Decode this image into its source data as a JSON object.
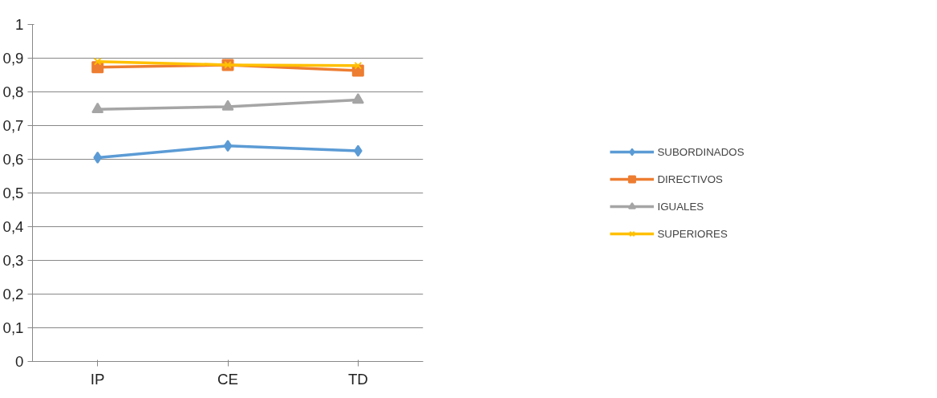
{
  "chart_data": {
    "type": "line",
    "categories": [
      "IP",
      "CE",
      "TD"
    ],
    "series": [
      {
        "name": "SUBORDINADOS",
        "color": "#5b9bd5",
        "marker": "diamond",
        "values": [
          0.605,
          0.64,
          0.625
        ]
      },
      {
        "name": "DIRECTIVOS",
        "color": "#ed7d31",
        "marker": "square",
        "values": [
          0.873,
          0.88,
          0.863
        ]
      },
      {
        "name": "IGUALES",
        "color": "#a5a5a5",
        "marker": "triangle",
        "values": [
          0.748,
          0.756,
          0.776
        ]
      },
      {
        "name": "SUPERIORES",
        "color": "#ffc000",
        "marker": "cross",
        "values": [
          0.89,
          0.88,
          0.878
        ]
      }
    ],
    "ylim": [
      0,
      1
    ],
    "yticks": [
      {
        "value": 0,
        "label": "0"
      },
      {
        "value": 0.1,
        "label": "0,1"
      },
      {
        "value": 0.2,
        "label": "0,2"
      },
      {
        "value": 0.3,
        "label": "0,3"
      },
      {
        "value": 0.4,
        "label": "0,4"
      },
      {
        "value": 0.5,
        "label": "0,5"
      },
      {
        "value": 0.6,
        "label": "0,6"
      },
      {
        "value": 0.7,
        "label": "0,7"
      },
      {
        "value": 0.8,
        "label": "0,8"
      },
      {
        "value": 0.9,
        "label": "0,9"
      },
      {
        "value": 1,
        "label": "1"
      }
    ],
    "grid": "y",
    "legend": "right",
    "line_style": "solid"
  }
}
